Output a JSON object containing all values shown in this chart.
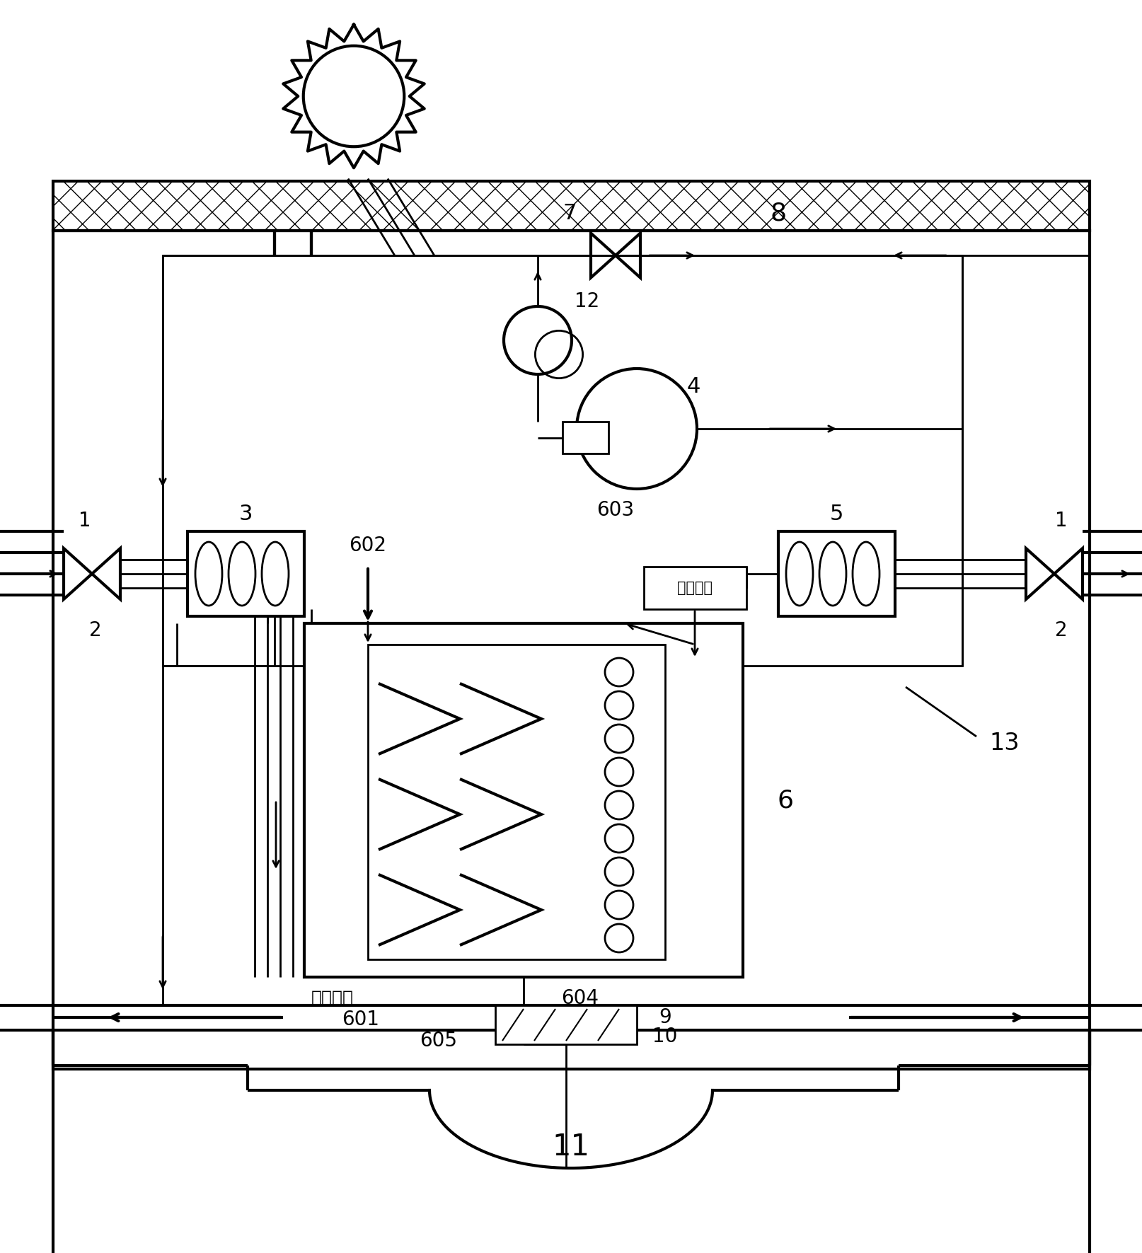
{
  "bg_color": "#ffffff",
  "line_color": "#000000",
  "lw": 2.0,
  "lw_thick": 3.0,
  "lw_thin": 1.5
}
